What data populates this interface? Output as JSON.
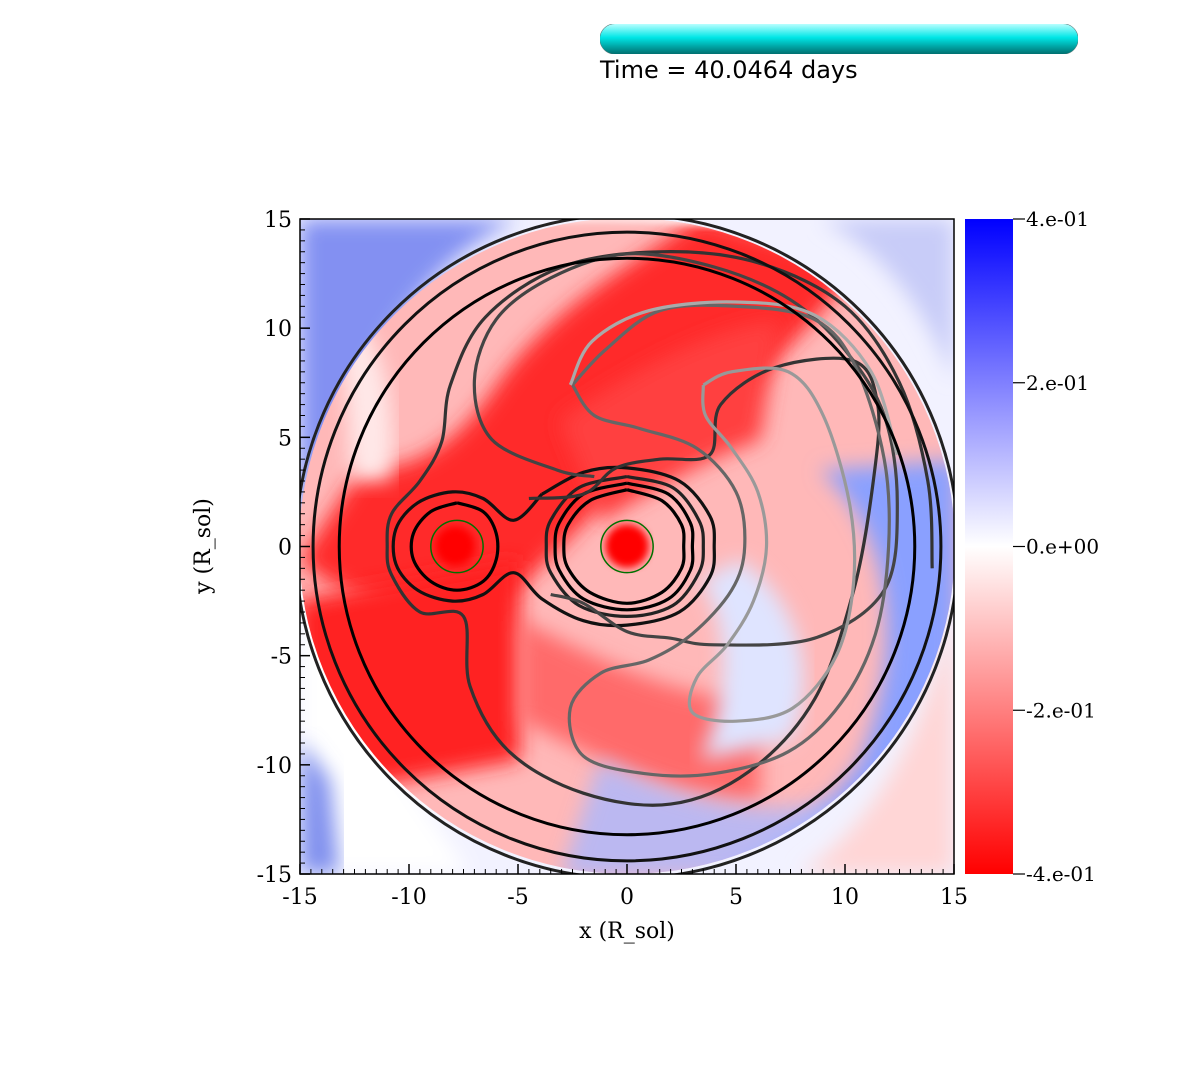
{
  "time_text": "Time = 40.0464 days",
  "progress": {
    "fraction": 1.0,
    "color": "#00d8d8"
  },
  "chart_data": {
    "type": "heatmap",
    "title": "",
    "xlabel": "x (R_sol)",
    "ylabel": "y (R_sol)",
    "xlim": [
      -15,
      15
    ],
    "ylim": [
      -15,
      15
    ],
    "xticks": [
      -15,
      -10,
      -5,
      0,
      5,
      10,
      15
    ],
    "yticks": [
      -15,
      -10,
      -5,
      0,
      5,
      10,
      15
    ],
    "xtick_labels": [
      "-15",
      "-10",
      "-5",
      "0",
      "5",
      "10",
      "15"
    ],
    "ytick_labels": [
      "-15",
      "-10",
      "-5",
      "0",
      "5",
      "10",
      "15"
    ],
    "colorbar": {
      "range": [
        -0.4,
        0.4
      ],
      "ticks": [
        0.4,
        0.2,
        0.0,
        -0.2,
        -0.4
      ],
      "tick_labels": [
        "4.e-01",
        "2.e-01",
        "0.e+00",
        "-2.e-01",
        "-4.e-01"
      ],
      "colors": {
        "min": "#ff0000",
        "mid": "#ffffff",
        "max": "#0000ff"
      }
    },
    "stars": [
      {
        "name": "companion",
        "x": -7.8,
        "y": 0.0,
        "radius": 1.2,
        "color": "#007000"
      },
      {
        "name": "primary",
        "x": 0.0,
        "y": 0.0,
        "radius": 1.2,
        "color": "#007000"
      }
    ],
    "contours": [
      {
        "level": 1,
        "color": "#000000",
        "points": [
          [
            -7.8,
            2.0
          ],
          [
            -6.6,
            1.6
          ],
          [
            -6.0,
            0.6
          ],
          [
            -6.0,
            -0.6
          ],
          [
            -6.6,
            -1.6
          ],
          [
            -7.8,
            -2.0
          ],
          [
            -9.0,
            -1.6
          ],
          [
            -9.8,
            -0.6
          ],
          [
            -9.8,
            0.6
          ],
          [
            -9.0,
            1.6
          ],
          [
            -7.8,
            2.0
          ]
        ]
      },
      {
        "level": 1,
        "color": "#000000",
        "points": [
          [
            0,
            2.6
          ],
          [
            1.6,
            2.1
          ],
          [
            2.5,
            1.0
          ],
          [
            2.6,
            0
          ],
          [
            2.5,
            -1.0
          ],
          [
            1.6,
            -2.1
          ],
          [
            0,
            -2.6
          ],
          [
            -1.7,
            -2.1
          ],
          [
            -2.7,
            -1.0
          ],
          [
            -2.9,
            0
          ],
          [
            -2.7,
            1.0
          ],
          [
            -1.7,
            2.1
          ],
          [
            0,
            2.6
          ]
        ]
      },
      {
        "level": 2,
        "color": "#000000",
        "points": [
          [
            0,
            2.9
          ],
          [
            1.9,
            2.4
          ],
          [
            2.9,
            1.1
          ],
          [
            3.0,
            0
          ],
          [
            2.9,
            -1.1
          ],
          [
            1.9,
            -2.4
          ],
          [
            0,
            -2.9
          ],
          [
            -2.0,
            -2.4
          ],
          [
            -3.1,
            -1.1
          ],
          [
            -3.3,
            0
          ],
          [
            -3.1,
            1.1
          ],
          [
            -2.0,
            2.4
          ],
          [
            0,
            2.9
          ]
        ]
      },
      {
        "level": 3,
        "color": "#222222",
        "points": [
          [
            0,
            3.2
          ],
          [
            2.1,
            2.7
          ],
          [
            3.3,
            1.2
          ],
          [
            3.5,
            0
          ],
          [
            3.3,
            -1.2
          ],
          [
            2.1,
            -2.7
          ],
          [
            0,
            -3.2
          ],
          [
            -2.2,
            -2.7
          ],
          [
            -3.5,
            -1.2
          ],
          [
            -3.7,
            0
          ],
          [
            -3.5,
            1.2
          ],
          [
            -2.2,
            2.7
          ],
          [
            0,
            3.2
          ]
        ]
      },
      {
        "level": 4,
        "color": "#111111",
        "points": [
          [
            -3.9,
            2.4
          ],
          [
            -2.0,
            3.4
          ],
          [
            0,
            3.6
          ],
          [
            2.4,
            3.0
          ],
          [
            3.8,
            1.4
          ],
          [
            4.0,
            0
          ],
          [
            3.8,
            -1.4
          ],
          [
            2.4,
            -3.0
          ],
          [
            0,
            -3.6
          ],
          [
            -2.0,
            -3.4
          ],
          [
            -3.9,
            -2.4
          ],
          [
            -5.2,
            -1.2
          ],
          [
            -6.6,
            -2.2
          ],
          [
            -8.0,
            -2.5
          ],
          [
            -9.6,
            -2.0
          ],
          [
            -10.6,
            -0.8
          ],
          [
            -10.6,
            0.8
          ],
          [
            -9.6,
            2.0
          ],
          [
            -8.0,
            2.5
          ],
          [
            -6.6,
            2.2
          ],
          [
            -5.2,
            1.2
          ],
          [
            -3.9,
            2.4
          ]
        ]
      },
      {
        "level": 5,
        "color": "#333333",
        "points": [
          [
            -4.5,
            2.2
          ],
          [
            -2.0,
            2.4
          ],
          [
            -0.5,
            3.6
          ],
          [
            1.5,
            4.0
          ],
          [
            3.8,
            4.2
          ],
          [
            4.3,
            6.5
          ],
          [
            6.8,
            8.2
          ],
          [
            10.4,
            8.5
          ],
          [
            11.5,
            6.5
          ],
          [
            11.3,
            3.0
          ],
          [
            10.4,
            -2.0
          ],
          [
            8.6,
            -7.0
          ],
          [
            5.6,
            -10.3
          ],
          [
            2.0,
            -11.8
          ],
          [
            -2.0,
            -11.3
          ],
          [
            -5.4,
            -9.4
          ],
          [
            -7.2,
            -6.4
          ],
          [
            -7.5,
            -3.2
          ],
          [
            -9.5,
            -3.0
          ],
          [
            -10.8,
            -1.3
          ],
          [
            -11.0,
            0
          ],
          [
            -10.8,
            1.5
          ],
          [
            -9.5,
            3.0
          ],
          [
            -8.5,
            4.8
          ],
          [
            -8.1,
            7.4
          ],
          [
            -6.5,
            10.5
          ],
          [
            -3.0,
            12.8
          ],
          [
            1.5,
            13.5
          ],
          [
            6.0,
            13.0
          ],
          [
            10.0,
            11.0
          ],
          [
            12.5,
            7.5
          ],
          [
            13.8,
            3.0
          ],
          [
            14.0,
            -1.0
          ]
        ]
      },
      {
        "level": 6,
        "color": "#444444",
        "points": [
          [
            -3.5,
            -2.2
          ],
          [
            -2.0,
            -2.6
          ],
          [
            0,
            -3.9
          ],
          [
            2.0,
            -4.2
          ],
          [
            4.0,
            -4.5
          ],
          [
            8.6,
            -4.2
          ],
          [
            11.8,
            -2.0
          ],
          [
            12.4,
            2.0
          ],
          [
            11.8,
            6.0
          ],
          [
            10.0,
            9.0
          ],
          [
            7.5,
            11.3
          ],
          [
            4.0,
            12.8
          ],
          [
            0,
            13.4
          ],
          [
            -3.5,
            12.3
          ],
          [
            -6.0,
            10.4
          ],
          [
            -7.0,
            7.6
          ],
          [
            -6.2,
            4.9
          ],
          [
            -3.2,
            3.5
          ],
          [
            -1.5,
            3.2
          ]
        ]
      },
      {
        "level": 7,
        "color": "#666666",
        "points": [
          [
            -2.5,
            7.4
          ],
          [
            -1.0,
            9.0
          ],
          [
            1.5,
            10.8
          ],
          [
            5.0,
            11.0
          ],
          [
            8.6,
            10.4
          ],
          [
            10.5,
            8.2
          ],
          [
            11.8,
            4.0
          ],
          [
            12.0,
            0
          ],
          [
            11.4,
            -4.0
          ],
          [
            9.8,
            -7.2
          ],
          [
            7.4,
            -9.4
          ],
          [
            4.0,
            -10.4
          ],
          [
            0.8,
            -10.4
          ],
          [
            -2.0,
            -9.6
          ],
          [
            -2.6,
            -7.4
          ],
          [
            -1.2,
            -5.8
          ],
          [
            1.0,
            -5.2
          ],
          [
            3.0,
            -4.0
          ],
          [
            4.8,
            -2.0
          ],
          [
            5.4,
            0
          ],
          [
            5.0,
            2.5
          ],
          [
            3.2,
            4.5
          ],
          [
            0.6,
            5.4
          ],
          [
            -1.5,
            6.0
          ],
          [
            -2.5,
            7.4
          ]
        ]
      },
      {
        "level": 8,
        "color": "#999999",
        "points": [
          [
            3.5,
            7.4
          ],
          [
            4.8,
            8.0
          ],
          [
            7.4,
            8.0
          ],
          [
            9.0,
            6.0
          ],
          [
            10.2,
            2.0
          ],
          [
            10.4,
            -1.6
          ],
          [
            9.6,
            -5.0
          ],
          [
            7.6,
            -7.4
          ],
          [
            5.0,
            -8.0
          ],
          [
            3.0,
            -7.6
          ],
          [
            3.2,
            -6.0
          ],
          [
            4.6,
            -4.5
          ],
          [
            5.8,
            -2.5
          ],
          [
            6.4,
            0
          ],
          [
            6.0,
            2.5
          ],
          [
            4.8,
            4.5
          ],
          [
            3.6,
            6.0
          ],
          [
            3.5,
            7.4
          ]
        ]
      },
      {
        "level": 9,
        "color": "#aaaaaa",
        "points": [
          [
            -2.6,
            7.4
          ],
          [
            -1.6,
            9.4
          ],
          [
            1.0,
            10.8
          ],
          [
            5.0,
            11.2
          ],
          [
            8.6,
            10.6
          ],
          [
            11.2,
            8.0
          ],
          [
            12.4,
            4.2
          ]
        ]
      }
    ]
  }
}
